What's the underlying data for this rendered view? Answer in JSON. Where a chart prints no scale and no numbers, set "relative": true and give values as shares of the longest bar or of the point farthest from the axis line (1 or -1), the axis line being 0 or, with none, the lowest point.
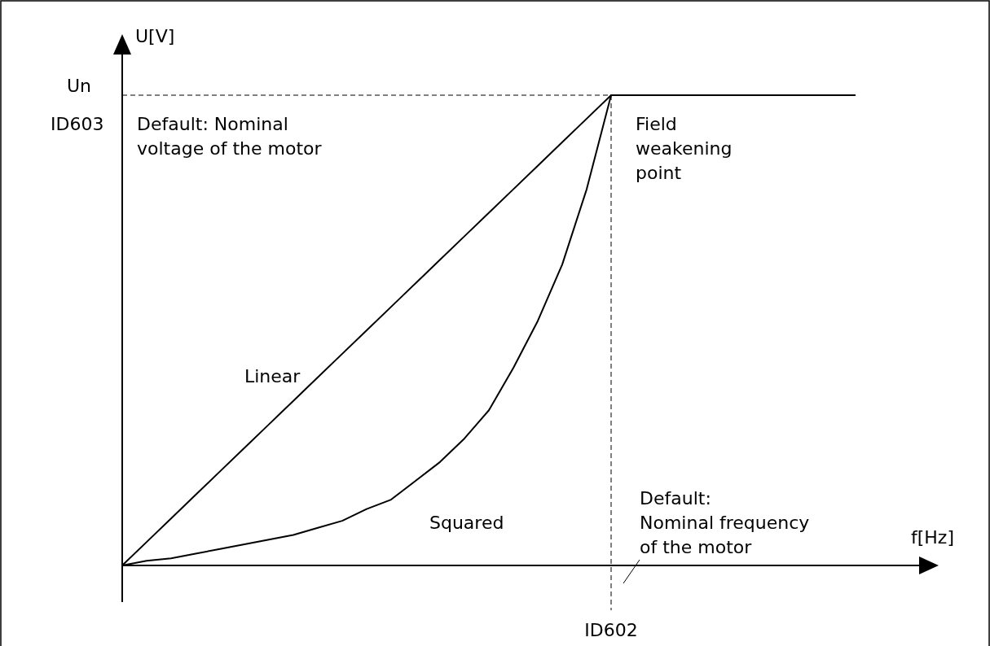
{
  "chart_data": {
    "type": "line",
    "relative": true,
    "xlabel": "f[Hz]",
    "ylabel": "U[V]",
    "categories": [
      null,
      null,
      null,
      null,
      null,
      null,
      null,
      null,
      null,
      null,
      null,
      null,
      null,
      null,
      null,
      null,
      null,
      null,
      null,
      null,
      null,
      null,
      null,
      null,
      null,
      null,
      null,
      null,
      null,
      null,
      null
    ],
    "series": [
      {
        "name": "Linear",
        "color": "#000000",
        "values": [
          0,
          0.05,
          0.1,
          0.15,
          0.2,
          0.25,
          0.3,
          0.35,
          0.4,
          0.45,
          0.5,
          0.55,
          0.6,
          0.65,
          0.7,
          0.75,
          0.8,
          0.85,
          0.9,
          0.95,
          1,
          1,
          1,
          1,
          1,
          1,
          1,
          1,
          1,
          1,
          1
        ]
      },
      {
        "name": "Squared",
        "color": "#000000",
        "values": [
          0,
          0.01,
          0.015,
          0.025,
          0.035,
          0.045,
          0.055,
          0.065,
          0.08,
          0.095,
          0.12,
          0.14,
          0.18,
          0.22,
          0.27,
          0.33,
          0.42,
          0.52,
          0.64,
          0.8,
          1,
          1,
          1,
          1,
          1,
          1,
          1,
          1,
          1,
          1,
          1
        ]
      }
    ],
    "ref_lines": [
      {
        "axis": "y",
        "value": 1,
        "label": "Un",
        "line_style": "dashed"
      }
    ],
    "annotations": [
      "ID603",
      "ID602",
      "Default: Nominal\nvoltage of the motor",
      "Field\nweakening\npoint",
      "Default:\nNominal frequency\nof the motor"
    ]
  }
}
